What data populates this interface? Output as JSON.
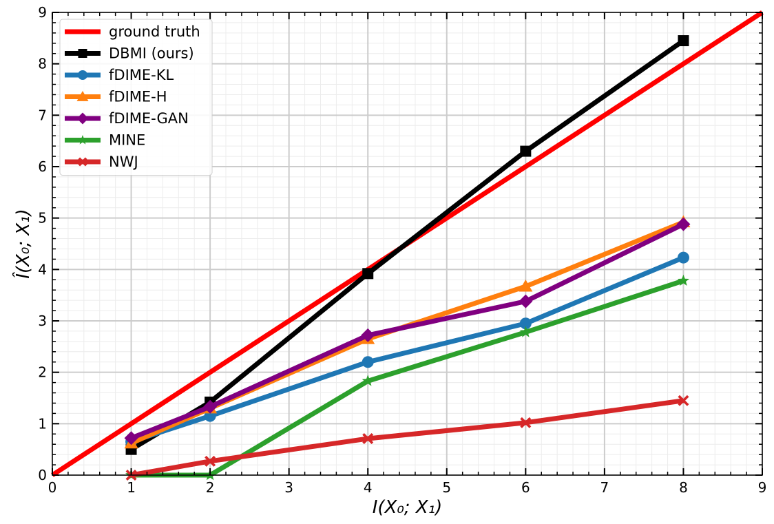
{
  "chart_data": {
    "type": "line",
    "xlabel": "I(X₀; X₁)",
    "ylabel": "Î(X₀; X₁)",
    "xlim": [
      0,
      9
    ],
    "ylim": [
      0,
      9
    ],
    "xticks": [
      "0",
      "1",
      "2",
      "3",
      "4",
      "5",
      "6",
      "7",
      "8",
      "9"
    ],
    "yticks": [
      "0",
      "1",
      "2",
      "3",
      "4",
      "5",
      "6",
      "7",
      "8",
      "9"
    ],
    "grid": true,
    "minor_grid": true,
    "legend_position": "top-left",
    "series": [
      {
        "name": "ground truth",
        "color": "#ff0000",
        "marker": "none",
        "x": [
          0,
          9
        ],
        "y": [
          0,
          9
        ]
      },
      {
        "name": "DBMI (ours)",
        "color": "#000000",
        "marker": "square",
        "x": [
          1,
          2,
          4,
          6,
          8
        ],
        "y": [
          0.5,
          1.42,
          3.92,
          6.3,
          8.45
        ]
      },
      {
        "name": "fDIME-KL",
        "color": "#1f77b4",
        "marker": "circle",
        "x": [
          1,
          2,
          4,
          6,
          8
        ],
        "y": [
          0.65,
          1.15,
          2.2,
          2.95,
          4.23
        ]
      },
      {
        "name": "fDIME-H",
        "color": "#ff7f0e",
        "marker": "triangle",
        "x": [
          1,
          2,
          4,
          6,
          8
        ],
        "y": [
          0.62,
          1.3,
          2.65,
          3.67,
          4.92
        ]
      },
      {
        "name": "fDIME-GAN",
        "color": "#800080",
        "marker": "diamond",
        "x": [
          1,
          2,
          4,
          6,
          8
        ],
        "y": [
          0.72,
          1.33,
          2.72,
          3.38,
          4.88
        ]
      },
      {
        "name": "MINE",
        "color": "#2ca02c",
        "marker": "star",
        "x": [
          1,
          2,
          4,
          6,
          8
        ],
        "y": [
          0.0,
          0.0,
          1.83,
          2.78,
          3.78
        ]
      },
      {
        "name": "NWJ",
        "color": "#d62728",
        "marker": "x",
        "x": [
          1,
          2,
          4,
          6,
          8
        ],
        "y": [
          0.0,
          0.27,
          0.71,
          1.02,
          1.45
        ]
      }
    ]
  }
}
